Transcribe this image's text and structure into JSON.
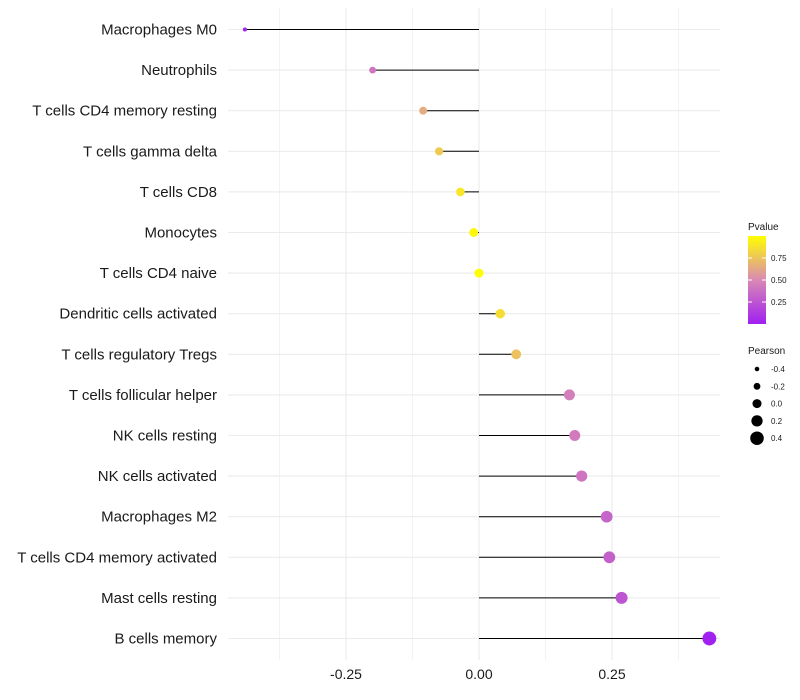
{
  "chart_data": {
    "type": "lollipop",
    "categories": [
      "Macrophages M0",
      "Neutrophils",
      "T cells CD4 memory resting",
      "T cells gamma delta",
      "T cells CD8",
      "Monocytes",
      "T cells CD4 naive",
      "Dendritic cells activated",
      "T cells regulatory  Tregs",
      "T cells follicular helper",
      "NK cells resting",
      "NK cells activated",
      "Macrophages M2",
      "T cells CD4 memory activated",
      "Mast cells resting",
      "B cells memory"
    ],
    "values": [
      -0.44,
      -0.2,
      -0.105,
      -0.075,
      -0.035,
      -0.01,
      0.0,
      0.04,
      0.07,
      0.17,
      0.18,
      0.193,
      0.24,
      0.245,
      0.268,
      0.433
    ],
    "pvalues": [
      0.02,
      0.4,
      0.65,
      0.78,
      0.9,
      0.97,
      0.99,
      0.86,
      0.74,
      0.45,
      0.43,
      0.4,
      0.33,
      0.31,
      0.25,
      0.01
    ],
    "xlim": [
      -0.5,
      0.47
    ],
    "xticks": [
      -0.25,
      0.0,
      0.25
    ],
    "xtick_labels": [
      "-0.25",
      "0.00",
      "0.25"
    ],
    "xlabel": "",
    "ylabel": "",
    "grid": true,
    "legend": {
      "color": {
        "title": "Pvalue",
        "ticks": [
          0.25,
          0.5,
          0.75
        ],
        "tick_labels": [
          "0.25",
          "0.50",
          "0.75"
        ],
        "range": [
          0,
          1
        ],
        "low_color": "#a020f0",
        "mid_color": "#d989b5",
        "high_color": "#ffff00"
      },
      "size": {
        "title": "Pearson",
        "values": [
          -0.4,
          -0.2,
          0.0,
          0.2,
          0.4
        ],
        "labels": [
          "-0.4",
          "-0.2",
          "0.0",
          "0.2",
          "0.4"
        ]
      },
      "placement": "right"
    },
    "colors": {
      "line": "#000000",
      "grid": "#ebebeb"
    }
  }
}
